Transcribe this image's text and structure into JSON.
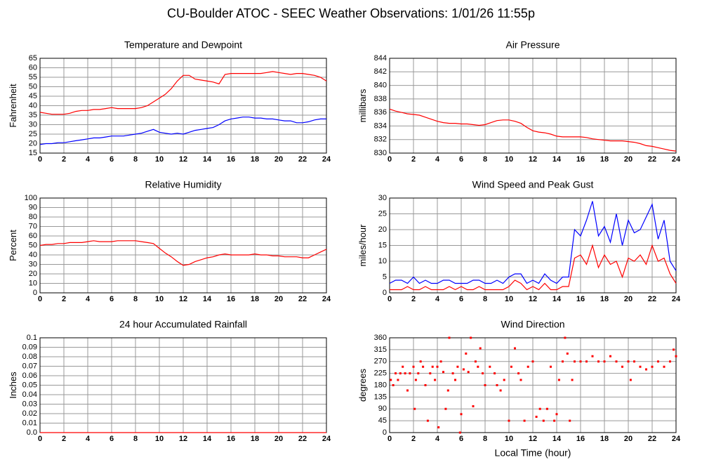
{
  "title": "CU-Boulder ATOC - SEEC Weather Observations: 1/01/26 11:55p",
  "chart_data": [
    {
      "type": "line",
      "title": "Temperature and Dewpoint",
      "ylabel": "Fahrenheit",
      "x": [
        0,
        0.5,
        1,
        1.5,
        2,
        2.5,
        3,
        3.5,
        4,
        4.5,
        5,
        5.5,
        6,
        6.5,
        7,
        7.5,
        8,
        8.5,
        9,
        9.5,
        10,
        10.5,
        11,
        11.5,
        12,
        12.5,
        13,
        13.5,
        14,
        14.5,
        15,
        15.5,
        16,
        16.5,
        17,
        17.5,
        18,
        18.5,
        19,
        19.5,
        20,
        20.5,
        21,
        21.5,
        22,
        22.5,
        23,
        23.5,
        24
      ],
      "series": [
        {
          "color": "#ff0000",
          "values": [
            36.5,
            36,
            35.5,
            35.5,
            35.5,
            36,
            37,
            37.5,
            37.5,
            38,
            38,
            38.5,
            39,
            38.5,
            38.5,
            38.5,
            38.5,
            39,
            40,
            42,
            44,
            46,
            49,
            53,
            56,
            56,
            54,
            53.5,
            53,
            52.5,
            51.5,
            56.5,
            57,
            57,
            57,
            57,
            57,
            57,
            57.5,
            58,
            57.5,
            57,
            56.5,
            57,
            57,
            56.5,
            56,
            55,
            53
          ]
        },
        {
          "color": "#0000ff",
          "values": [
            19.5,
            20,
            20,
            20.5,
            20.5,
            21,
            21.5,
            22,
            22.5,
            23,
            23,
            23.5,
            24,
            24,
            24,
            24.5,
            25,
            25.5,
            26.5,
            27.5,
            26,
            25.5,
            25,
            25.5,
            25,
            26,
            27,
            27.5,
            28,
            28.5,
            30,
            32,
            33,
            33.5,
            34,
            34,
            33.5,
            33.5,
            33,
            33,
            32.5,
            32,
            32,
            31,
            31,
            31.5,
            32.5,
            33,
            33
          ]
        }
      ],
      "xlim": [
        0,
        24
      ],
      "xticks": [
        0,
        2,
        4,
        6,
        8,
        10,
        12,
        14,
        16,
        18,
        20,
        22,
        24
      ],
      "ylim": [
        15,
        65
      ],
      "yticks": [
        15,
        20,
        25,
        30,
        35,
        40,
        45,
        50,
        55,
        60,
        65
      ],
      "grid": true
    },
    {
      "type": "line",
      "title": "Air Pressure",
      "ylabel": "millibars",
      "x": [
        0,
        0.5,
        1,
        1.5,
        2,
        2.5,
        3,
        3.5,
        4,
        4.5,
        5,
        5.5,
        6,
        6.5,
        7,
        7.5,
        8,
        8.5,
        9,
        9.5,
        10,
        10.5,
        11,
        11.5,
        12,
        12.5,
        13,
        13.5,
        14,
        14.5,
        15,
        15.5,
        16,
        16.5,
        17,
        17.5,
        18,
        18.5,
        19,
        19.5,
        20,
        20.5,
        21,
        21.5,
        22,
        22.5,
        23,
        23.5,
        24
      ],
      "series": [
        {
          "color": "#ff0000",
          "values": [
            836.5,
            836.2,
            836,
            835.8,
            835.7,
            835.6,
            835.3,
            835,
            834.7,
            834.5,
            834.4,
            834.4,
            834.3,
            834.3,
            834.2,
            834.1,
            834.2,
            834.5,
            834.8,
            834.9,
            834.9,
            834.7,
            834.4,
            833.8,
            833.3,
            833.1,
            833,
            832.8,
            832.5,
            832.4,
            832.4,
            832.4,
            832.4,
            832.3,
            832.1,
            832,
            831.9,
            831.8,
            831.8,
            831.8,
            831.7,
            831.6,
            831.4,
            831.1,
            831,
            830.8,
            830.6,
            830.4,
            830.3
          ]
        }
      ],
      "xlim": [
        0,
        24
      ],
      "xticks": [
        0,
        2,
        4,
        6,
        8,
        10,
        12,
        14,
        16,
        18,
        20,
        22,
        24
      ],
      "ylim": [
        830,
        844
      ],
      "yticks": [
        830,
        832,
        834,
        836,
        838,
        840,
        842,
        844
      ],
      "grid": true
    },
    {
      "type": "line",
      "title": "Relative Humidity",
      "ylabel": "Percent",
      "x": [
        0,
        0.5,
        1,
        1.5,
        2,
        2.5,
        3,
        3.5,
        4,
        4.5,
        5,
        5.5,
        6,
        6.5,
        7,
        7.5,
        8,
        8.5,
        9,
        9.5,
        10,
        10.5,
        11,
        11.5,
        12,
        12.5,
        13,
        13.5,
        14,
        14.5,
        15,
        15.5,
        16,
        16.5,
        17,
        17.5,
        18,
        18.5,
        19,
        19.5,
        20,
        20.5,
        21,
        21.5,
        22,
        22.5,
        23,
        23.5,
        24
      ],
      "series": [
        {
          "color": "#ff0000",
          "values": [
            50,
            51,
            51,
            52,
            52,
            53,
            53,
            53,
            54,
            55,
            54,
            54,
            54,
            55,
            55,
            55,
            55,
            54,
            53,
            52,
            47,
            42,
            38,
            33,
            29,
            30,
            33,
            35,
            37,
            38,
            40,
            41,
            40,
            40,
            40,
            40,
            41,
            40,
            40,
            39,
            39,
            38,
            38,
            38,
            37,
            37,
            40,
            43,
            46
          ]
        }
      ],
      "xlim": [
        0,
        24
      ],
      "xticks": [
        0,
        2,
        4,
        6,
        8,
        10,
        12,
        14,
        16,
        18,
        20,
        22,
        24
      ],
      "ylim": [
        0,
        100
      ],
      "yticks": [
        0,
        10,
        20,
        30,
        40,
        50,
        60,
        70,
        80,
        90,
        100
      ],
      "grid": true
    },
    {
      "type": "line",
      "title": "Wind Speed and Peak Gust",
      "ylabel": "miles/hour",
      "x": [
        0,
        0.5,
        1,
        1.5,
        2,
        2.5,
        3,
        3.5,
        4,
        4.5,
        5,
        5.5,
        6,
        6.5,
        7,
        7.5,
        8,
        8.5,
        9,
        9.5,
        10,
        10.5,
        11,
        11.5,
        12,
        12.5,
        13,
        13.5,
        14,
        14.5,
        15,
        15.5,
        16,
        16.5,
        17,
        17.5,
        18,
        18.5,
        19,
        19.5,
        20,
        20.5,
        21,
        21.5,
        22,
        22.5,
        23,
        23.5,
        24
      ],
      "series": [
        {
          "color": "#ff0000",
          "values": [
            1,
            1,
            1,
            2,
            1,
            1,
            2,
            1,
            1,
            1,
            2,
            1,
            2,
            1,
            1,
            2,
            1,
            1,
            1,
            1,
            2,
            4,
            3,
            1,
            2,
            1,
            3,
            1,
            1,
            2,
            2,
            11,
            12,
            9,
            15,
            8,
            12,
            9,
            10,
            5,
            11,
            10,
            12,
            9,
            15,
            10,
            11,
            6,
            3
          ]
        },
        {
          "color": "#0000ff",
          "values": [
            3,
            4,
            4,
            3,
            5,
            3,
            4,
            3,
            3,
            4,
            4,
            3,
            3,
            3,
            4,
            4,
            3,
            3,
            4,
            3,
            5,
            6,
            6,
            3,
            4,
            3,
            6,
            4,
            3,
            5,
            5,
            20,
            18,
            23,
            29,
            18,
            21,
            16,
            25,
            15,
            23,
            19,
            20,
            24,
            28,
            17,
            23,
            10,
            7
          ]
        }
      ],
      "xlim": [
        0,
        24
      ],
      "xticks": [
        0,
        2,
        4,
        6,
        8,
        10,
        12,
        14,
        16,
        18,
        20,
        22,
        24
      ],
      "ylim": [
        0,
        30
      ],
      "yticks": [
        0,
        5,
        10,
        15,
        20,
        25,
        30
      ],
      "grid": true
    },
    {
      "type": "line",
      "title": "24 hour Accumulated Rainfall",
      "ylabel": "Inches",
      "x": [
        0,
        24
      ],
      "series": [
        {
          "color": "#ff0000",
          "values": [
            0,
            0
          ]
        }
      ],
      "xlim": [
        0,
        24
      ],
      "xticks": [
        0,
        2,
        4,
        6,
        8,
        10,
        12,
        14,
        16,
        18,
        20,
        22,
        24
      ],
      "ylim": [
        0,
        0.1
      ],
      "yticks": [
        {
          "value": 0,
          "label": "0.0"
        },
        0.01,
        0.02,
        0.03,
        0.04,
        0.05,
        0.06,
        0.07,
        0.08,
        0.09,
        0.1
      ],
      "grid": true
    },
    {
      "type": "scatter",
      "title": "Wind Direction",
      "ylabel": "degrees",
      "xlabel": "Local Time (hour)",
      "x": [
        0.1,
        0.3,
        0.5,
        0.7,
        0.9,
        1.1,
        1.3,
        1.5,
        1.7,
        2,
        2.1,
        2.2,
        2.4,
        2.6,
        2.8,
        3,
        3.2,
        3.4,
        3.6,
        3.8,
        4,
        4.1,
        4.3,
        4.5,
        4.7,
        4.9,
        5,
        5.3,
        5.5,
        5.7,
        5.9,
        6,
        6.2,
        6.4,
        6.6,
        6.8,
        7,
        7.2,
        7.4,
        7.6,
        7.8,
        8,
        8.4,
        8.8,
        9,
        9.3,
        9.6,
        10,
        10.2,
        10.5,
        10.8,
        11,
        11.3,
        11.6,
        12,
        12.3,
        12.6,
        12.9,
        13.2,
        13.5,
        13.8,
        14,
        14.2,
        14.5,
        14.7,
        14.9,
        15.1,
        15.3,
        15.5,
        16,
        16.5,
        17,
        17.5,
        18,
        18.5,
        19,
        19.5,
        20,
        20.2,
        20.5,
        21,
        21.5,
        22,
        22.5,
        23,
        23.5,
        23.8,
        24
      ],
      "values": [
        200,
        180,
        225,
        200,
        225,
        250,
        225,
        160,
        225,
        250,
        90,
        200,
        225,
        270,
        250,
        180,
        45,
        225,
        250,
        200,
        250,
        20,
        270,
        230,
        90,
        160,
        360,
        225,
        200,
        250,
        0,
        70,
        240,
        300,
        230,
        360,
        100,
        270,
        250,
        320,
        225,
        180,
        250,
        225,
        180,
        160,
        200,
        45,
        250,
        320,
        225,
        200,
        45,
        250,
        270,
        60,
        90,
        45,
        90,
        250,
        45,
        70,
        200,
        270,
        360,
        300,
        45,
        200,
        270,
        270,
        270,
        290,
        270,
        270,
        290,
        270,
        250,
        270,
        200,
        270,
        250,
        240,
        250,
        270,
        250,
        270,
        315,
        290
      ],
      "color": "#ff0000",
      "xlim": [
        0,
        24
      ],
      "xticks": [
        0,
        2,
        4,
        6,
        8,
        10,
        12,
        14,
        16,
        18,
        20,
        22,
        24
      ],
      "ylim": [
        0,
        360
      ],
      "yticks": [
        0,
        45,
        90,
        135,
        180,
        225,
        270,
        315,
        360
      ],
      "grid": true
    }
  ]
}
